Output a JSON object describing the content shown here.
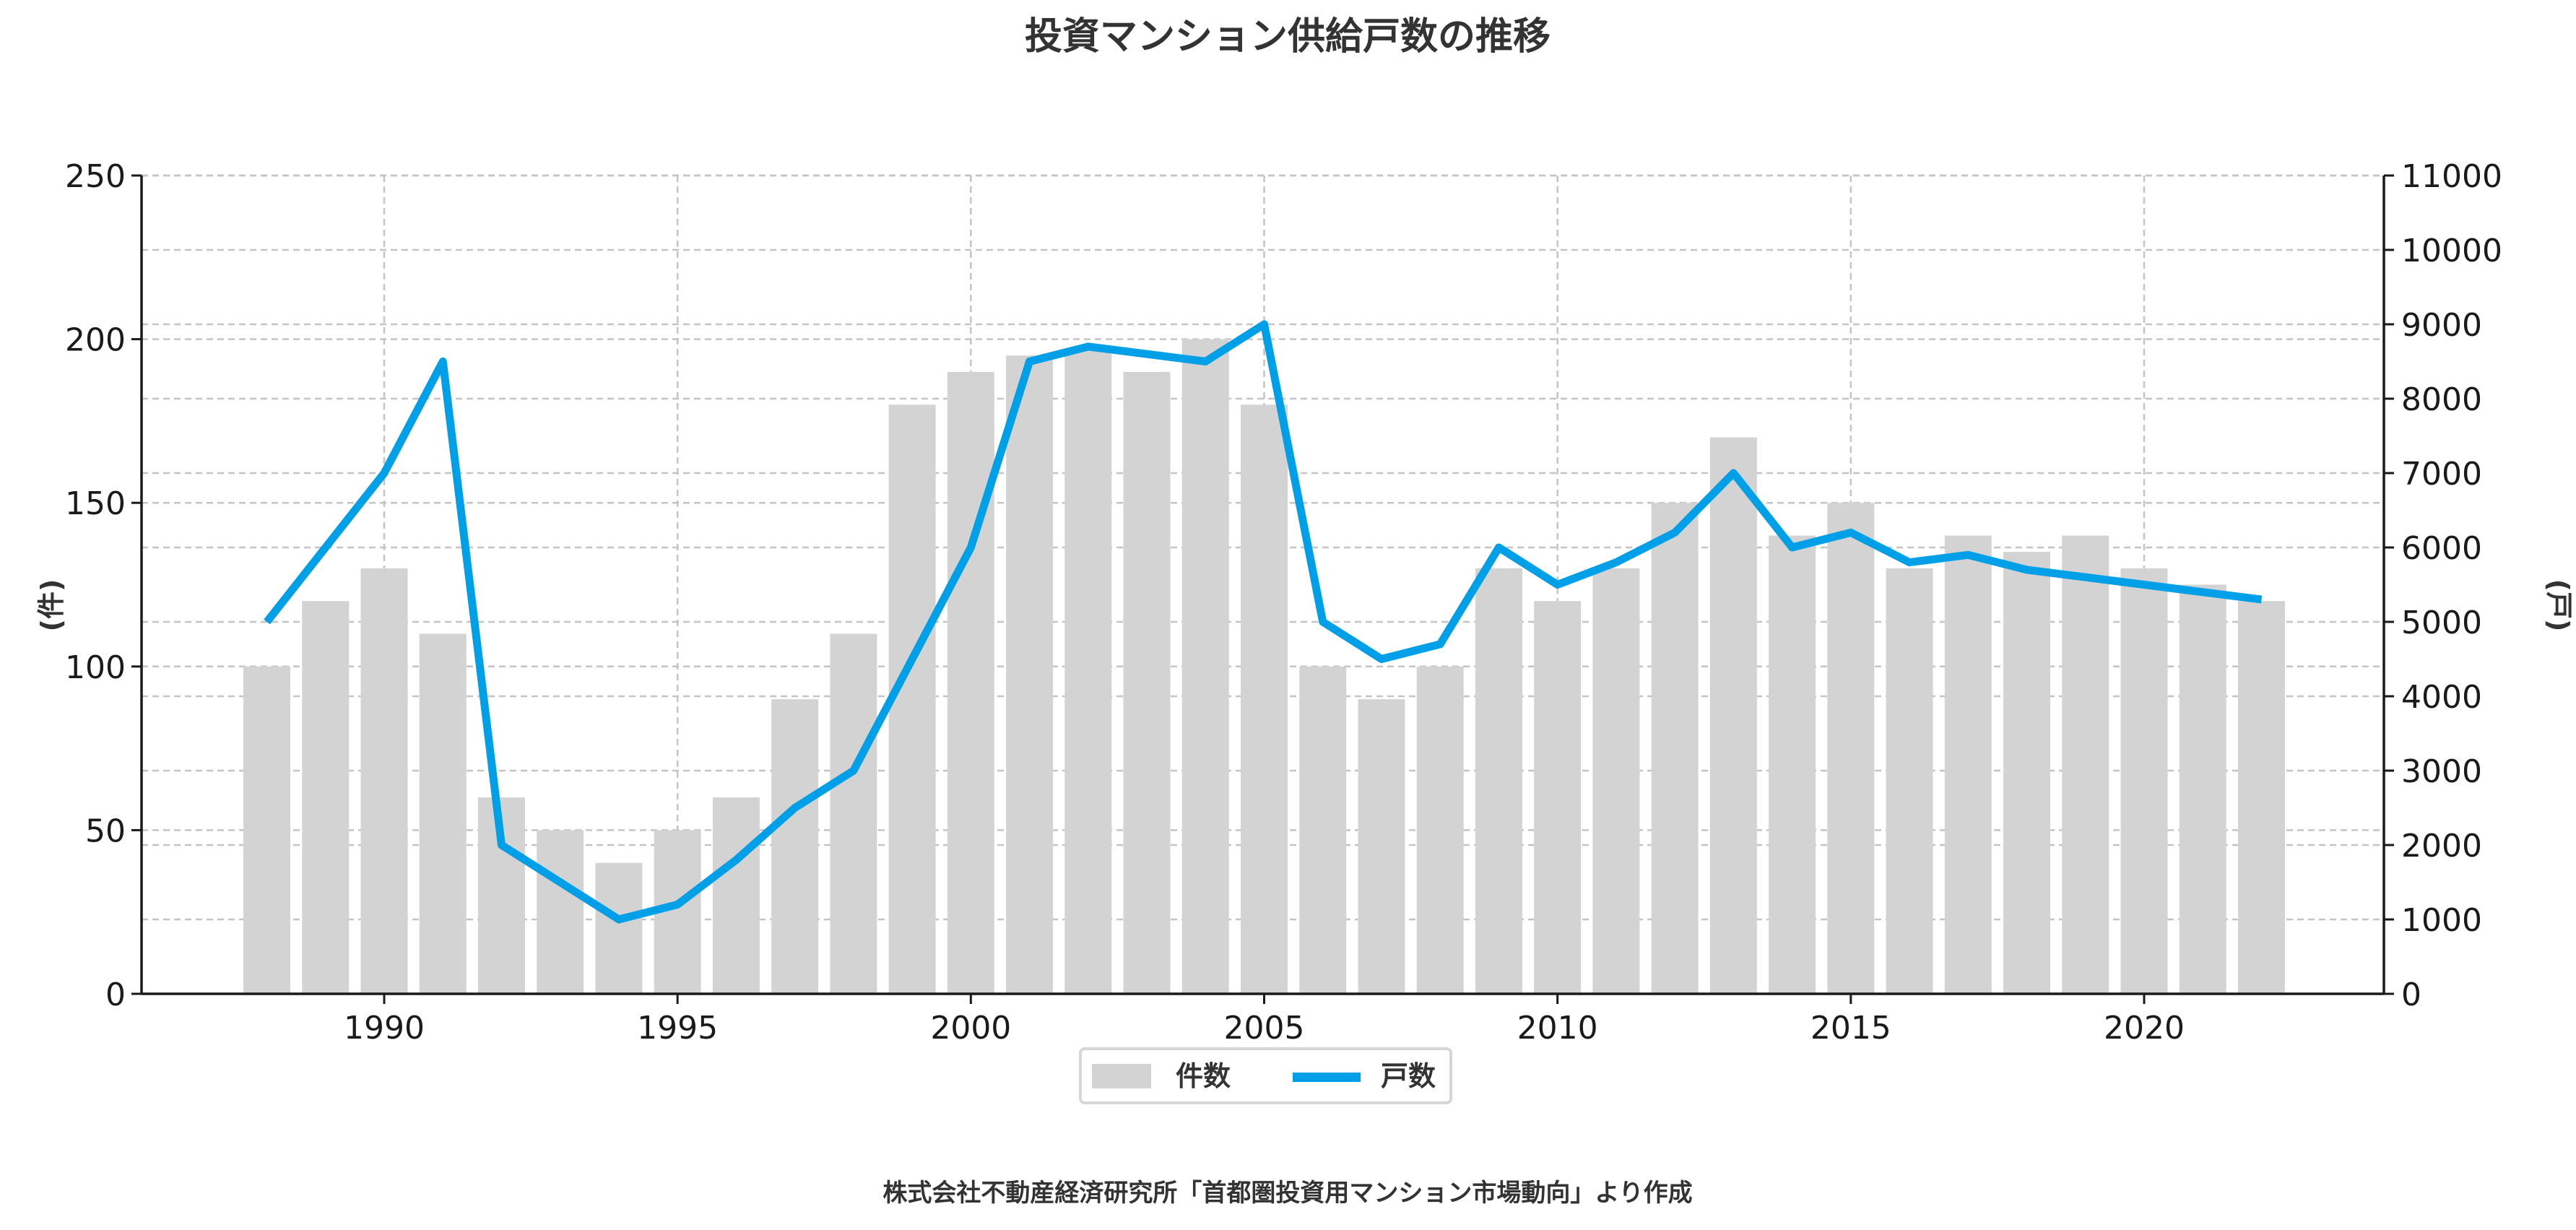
{
  "chart_data": {
    "type": "bar+line",
    "title": "投資マンション供給戸数の推移",
    "source_note": "株式会社不動産経済研究所「首都圏投資用マンション市場動向」より作成",
    "ylabel_left": "(件)",
    "ylabel_right": "(戸)",
    "xlim": [
      1986,
      2024
    ],
    "ylim_left": [
      0,
      250
    ],
    "ylim_right": [
      0,
      11000
    ],
    "x_ticks": [
      1990,
      1995,
      2000,
      2005,
      2010,
      2015,
      2020
    ],
    "y_ticks_left": [
      0,
      50,
      100,
      150,
      200,
      250
    ],
    "y_ticks_right": [
      0,
      1000,
      2000,
      3000,
      4000,
      5000,
      6000,
      7000,
      8000,
      9000,
      10000,
      11000
    ],
    "grid": true,
    "legend_position": "bottom-center",
    "x": [
      1988,
      1989,
      1990,
      1991,
      1992,
      1993,
      1994,
      1995,
      1996,
      1997,
      1998,
      1999,
      2000,
      2001,
      2002,
      2003,
      2004,
      2005,
      2006,
      2007,
      2008,
      2009,
      2010,
      2011,
      2012,
      2013,
      2014,
      2015,
      2016,
      2017,
      2018,
      2019,
      2020,
      2021,
      2022
    ],
    "series": [
      {
        "name": "件数",
        "type": "bar",
        "axis": "left",
        "color": "#d3d3d3",
        "values": [
          100,
          120,
          130,
          110,
          60,
          50,
          40,
          50,
          60,
          90,
          110,
          180,
          190,
          195,
          197,
          190,
          200,
          180,
          100,
          90,
          100,
          130,
          120,
          130,
          150,
          170,
          140,
          150,
          130,
          140,
          135,
          140,
          130,
          125,
          120
        ]
      },
      {
        "name": "戸数",
        "type": "line",
        "axis": "right",
        "color": "#00a0e9",
        "values": [
          5000,
          6000,
          7000,
          8500,
          2000,
          1500,
          1000,
          1200,
          1800,
          2500,
          3000,
          4500,
          6000,
          8500,
          8700,
          8600,
          8500,
          9000,
          5000,
          4500,
          4700,
          6000,
          5500,
          5800,
          6200,
          7000,
          6000,
          6200,
          5800,
          5900,
          5700,
          5600,
          5500,
          5400,
          5300
        ]
      }
    ]
  }
}
